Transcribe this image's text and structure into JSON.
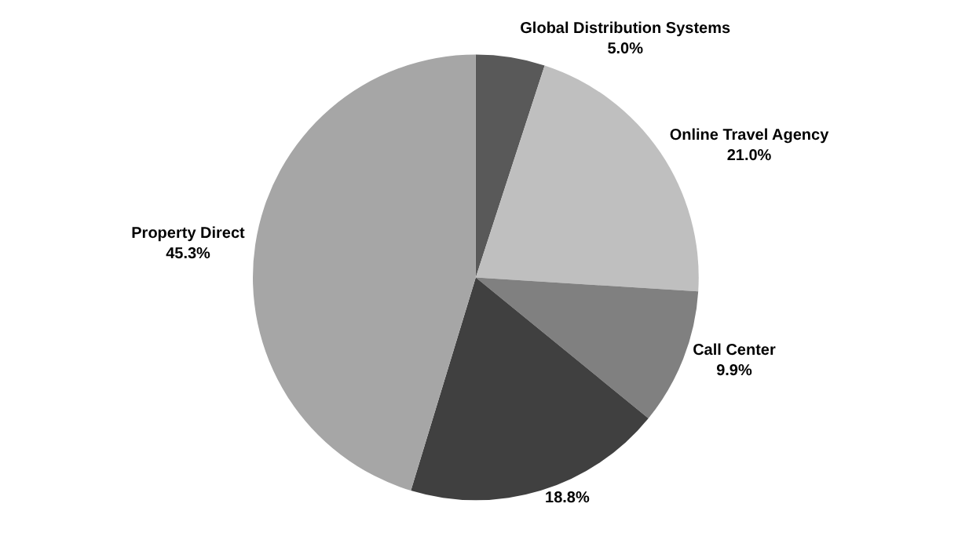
{
  "chart_data": {
    "type": "pie",
    "categories": [
      "Global Distribution Systems",
      "Online Travel Agency",
      "Call Center",
      null,
      "Property Direct"
    ],
    "values": [
      5.0,
      21.0,
      9.9,
      18.8,
      45.3
    ],
    "value_labels": [
      "5.0%",
      "21.0%",
      "9.9%",
      "18.8%",
      "45.3%"
    ],
    "colors": [
      "#595959",
      "#bfbfbf",
      "#808080",
      "#404040",
      "#a6a6a6"
    ],
    "legend": false
  }
}
